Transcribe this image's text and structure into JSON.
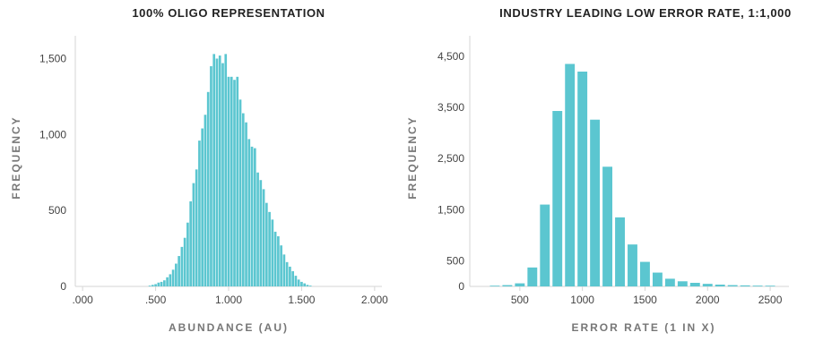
{
  "chart_data": [
    {
      "type": "bar",
      "title": "100% OLIGO REPRESENTATION",
      "xlabel": "ABUNDANCE (AU)",
      "ylabel": "FREQUENCY",
      "xlim": [
        -0.05,
        2.05
      ],
      "ylim": [
        0,
        1650
      ],
      "xticks": [
        0,
        0.5,
        1.0,
        1.5,
        2.0
      ],
      "xtick_labels": [
        ".000",
        ".500",
        "1.000",
        "1.500",
        "2.000"
      ],
      "yticks": [
        0,
        500,
        1000,
        1500
      ],
      "ytick_labels": [
        "0",
        "500",
        "1,000",
        "1,500"
      ],
      "bar_color": "#5bc6d0",
      "bin_width": 0.02,
      "x": [
        0.46,
        0.48,
        0.5,
        0.52,
        0.54,
        0.56,
        0.58,
        0.6,
        0.62,
        0.64,
        0.66,
        0.68,
        0.7,
        0.72,
        0.74,
        0.76,
        0.78,
        0.8,
        0.82,
        0.84,
        0.86,
        0.88,
        0.9,
        0.92,
        0.94,
        0.96,
        0.98,
        1.0,
        1.02,
        1.04,
        1.06,
        1.08,
        1.1,
        1.12,
        1.14,
        1.16,
        1.18,
        1.2,
        1.22,
        1.24,
        1.26,
        1.28,
        1.3,
        1.32,
        1.34,
        1.36,
        1.38,
        1.4,
        1.42,
        1.44,
        1.46,
        1.48,
        1.5,
        1.52,
        1.54,
        1.56
      ],
      "values": [
        5,
        10,
        15,
        25,
        30,
        40,
        60,
        80,
        110,
        150,
        200,
        260,
        320,
        420,
        560,
        680,
        770,
        960,
        1040,
        1130,
        1280,
        1450,
        1530,
        1500,
        1520,
        1470,
        1530,
        1380,
        1380,
        1360,
        1380,
        1230,
        1140,
        1080,
        970,
        920,
        910,
        750,
        700,
        640,
        550,
        490,
        440,
        360,
        330,
        270,
        210,
        160,
        130,
        100,
        70,
        45,
        30,
        20,
        10,
        5
      ]
    },
    {
      "type": "bar",
      "title": "INDUSTRY LEADING LOW ERROR RATE, 1:1,000",
      "xlabel": "ERROR RATE (1 IN X)",
      "ylabel": "FREQUENCY",
      "xlim": [
        100,
        2650
      ],
      "ylim": [
        0,
        4900
      ],
      "xticks": [
        500,
        1000,
        1500,
        2000,
        2500
      ],
      "xtick_labels": [
        "500",
        "1000",
        "1500",
        "2000",
        "2500"
      ],
      "yticks": [
        0,
        500,
        1500,
        2500,
        3500,
        4500
      ],
      "ytick_labels": [
        "0",
        "500",
        "1,500",
        "2,500",
        "3,500",
        "4,500"
      ],
      "bar_color": "#5bc6d0",
      "bin_width": 100,
      "x": [
        300,
        400,
        500,
        600,
        700,
        800,
        900,
        1000,
        1100,
        1200,
        1300,
        1400,
        1500,
        1600,
        1700,
        1800,
        1900,
        2000,
        2100,
        2200,
        2300,
        2400,
        2500
      ],
      "values": [
        10,
        25,
        60,
        370,
        1600,
        3430,
        4350,
        4200,
        3260,
        2340,
        1350,
        820,
        480,
        270,
        150,
        100,
        70,
        50,
        35,
        25,
        20,
        15,
        5
      ]
    }
  ]
}
